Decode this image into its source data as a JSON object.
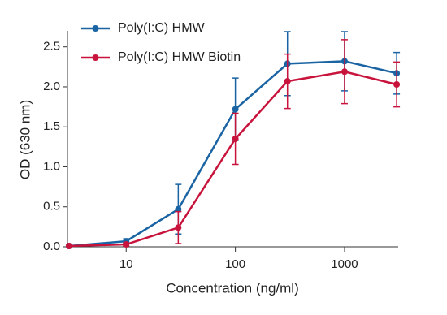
{
  "chart_data": {
    "type": "line",
    "xlabel": "Concentration (ng/ml)",
    "ylabel": "OD (630 nm)",
    "x": [
      3,
      10,
      30,
      100,
      300,
      1000,
      3000
    ],
    "xscale": "log",
    "xlim": [
      2.9,
      3100
    ],
    "xticks": [
      10,
      100,
      1000
    ],
    "ylim": [
      0,
      2.7
    ],
    "yticks": [
      {
        "value": 0,
        "label": "0.0"
      },
      0.5,
      {
        "value": 1,
        "label": "1.0"
      },
      1.5,
      {
        "value": 2,
        "label": "2.0"
      },
      2.5
    ],
    "legend": "upper left",
    "series": [
      {
        "name": "Poly(I:C) HMW",
        "color": "#1a64a3",
        "values": [
          0.01,
          0.07,
          0.47,
          1.72,
          2.29,
          2.32,
          2.17
        ],
        "errors": [
          0.01,
          0.03,
          0.31,
          0.39,
          0.4,
          0.37,
          0.26
        ]
      },
      {
        "name": "Poly(I:C) HMW Biotin",
        "color": "#c8143c",
        "values": [
          0.01,
          0.03,
          0.24,
          1.35,
          2.07,
          2.19,
          2.03
        ],
        "errors": [
          0.005,
          0.02,
          0.2,
          0.32,
          0.34,
          0.4,
          0.28
        ]
      }
    ]
  }
}
